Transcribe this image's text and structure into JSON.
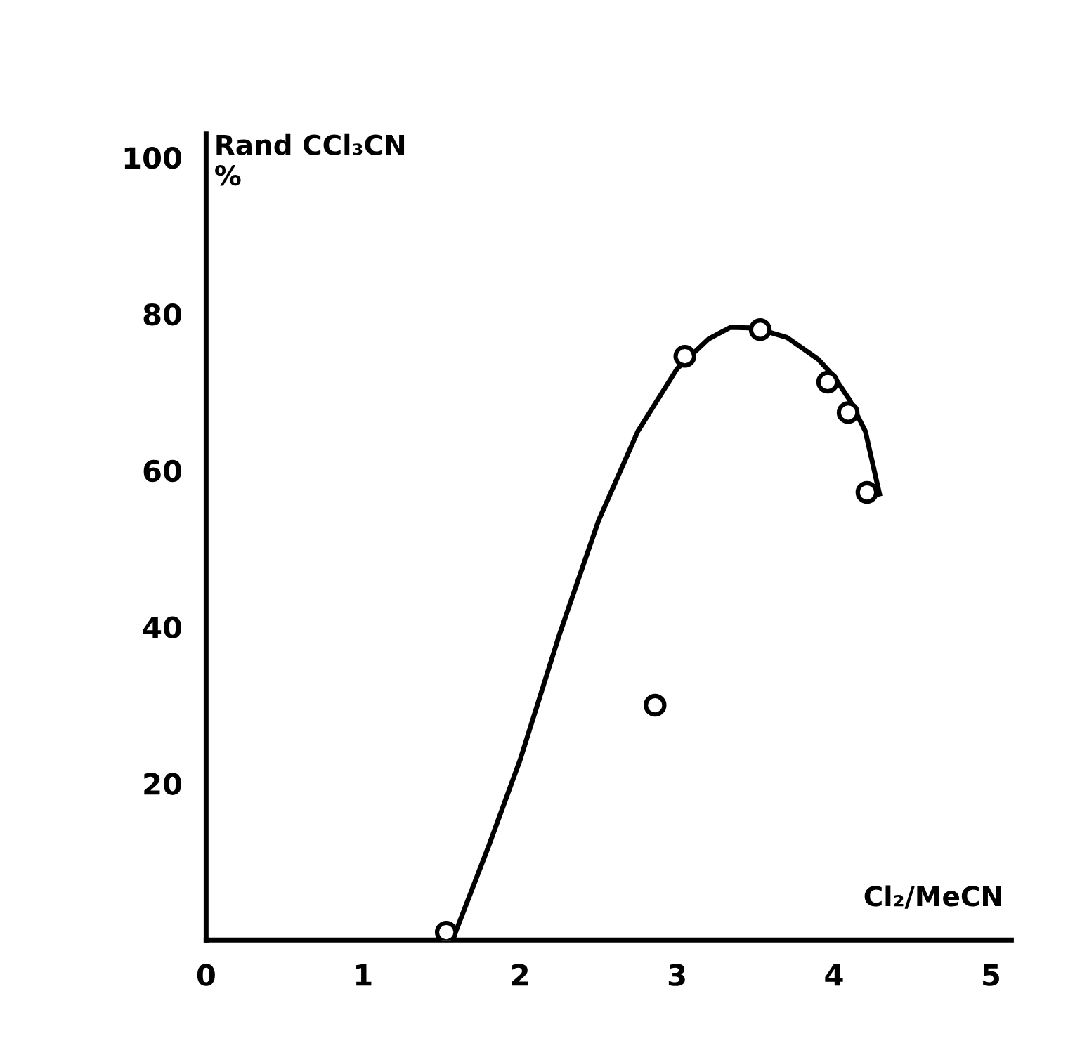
{
  "chart_data": {
    "type": "scatter",
    "ylabel": "Rand CCl₃CN\n%",
    "xlabel": "Cl₂/MeCN",
    "xlim": [
      0,
      5.13
    ],
    "xticks": [
      0,
      1,
      2,
      3,
      4,
      5
    ],
    "ylim": [
      0,
      103
    ],
    "yticks": [
      20,
      40,
      60,
      80,
      100
    ],
    "grid": false,
    "legend": false,
    "series": [
      {
        "color": "#000000",
        "marker": "circle",
        "x": [
          1.53,
          2.86,
          3.05,
          3.53,
          3.96,
          4.09,
          4.21
        ],
        "values": [
          1,
          30,
          74.6,
          78,
          71.3,
          67.4,
          57.2
        ]
      },
      {
        "type": "line",
        "color": "#000000",
        "marker": "none",
        "line_style": "solid",
        "x": [
          1.57,
          1.8,
          2.0,
          2.25,
          2.5,
          2.75,
          3.0,
          3.2,
          3.34,
          3.5,
          3.7,
          3.9,
          4.0,
          4.1,
          4.2,
          4.29
        ],
        "values": [
          0,
          12,
          23,
          39,
          53.6,
          65,
          73,
          76.8,
          78.3,
          78.2,
          77,
          74.2,
          72,
          69,
          65,
          57
        ]
      }
    ]
  }
}
